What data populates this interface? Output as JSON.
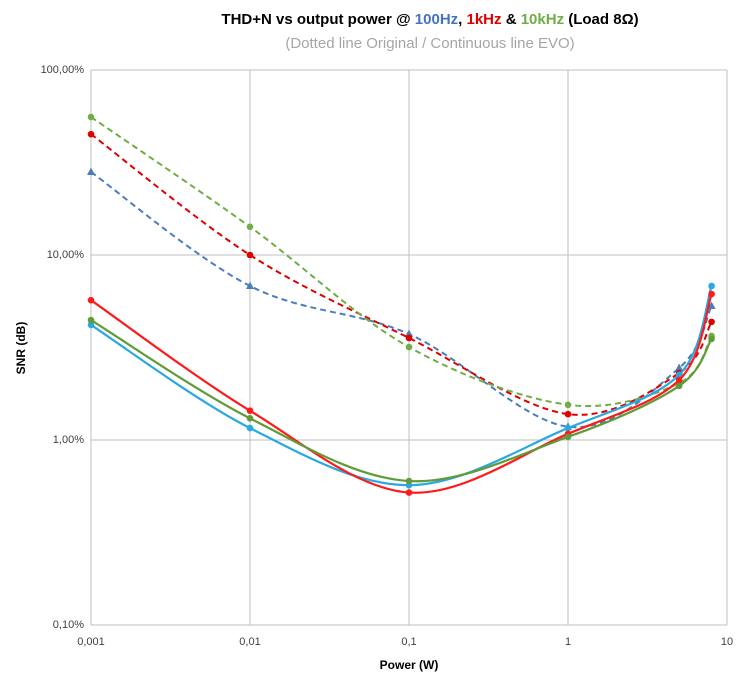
{
  "chart_data": {
    "type": "line",
    "title": [
      {
        "text": "THD+N vs output power @ ",
        "color": "#000000"
      },
      {
        "text": "100Hz",
        "color": "#4472c4"
      },
      {
        "text": ", ",
        "color": "#000000"
      },
      {
        "text": "1kHz",
        "color": "#e00000"
      },
      {
        "text": " & ",
        "color": "#000000"
      },
      {
        "text": "10kHz",
        "color": "#70ad47"
      },
      {
        "text": " (Load 8Ω)",
        "color": "#000000"
      }
    ],
    "subtitle": "(Dotted line Original / Continuous line EVO)",
    "xlabel": "Power (W)",
    "ylabel": "SNR (dB)",
    "xlog": true,
    "ylog": true,
    "grid": true,
    "xlim": [
      0.001,
      10
    ],
    "xticks": [
      {
        "value": 0.001,
        "label": "0,001"
      },
      {
        "value": 0.01,
        "label": "0,01"
      },
      {
        "value": 0.1,
        "label": "0,1"
      },
      1,
      10
    ],
    "ylim": [
      0.1,
      100
    ],
    "yticks": [
      {
        "value": 0.1,
        "label": "0,10%"
      },
      {
        "value": 1,
        "label": "1,00%"
      },
      {
        "value": 10,
        "label": "10,00%"
      },
      {
        "value": 100,
        "label": "100,00%"
      }
    ],
    "x": [
      0.001,
      0.01,
      0.1,
      1,
      5,
      8
    ],
    "series": [
      {
        "color": "#4a7ebb",
        "dashed": true,
        "marker": "triangle",
        "values": [
          28.1,
          6.8,
          3.74,
          1.18,
          2.45,
          5.3
        ]
      },
      {
        "color": "#e00000",
        "dashed": true,
        "marker": "circle",
        "values": [
          45,
          10,
          3.56,
          1.38,
          2.3,
          4.35
        ]
      },
      {
        "color": "#70ad47",
        "dashed": true,
        "marker": "circle",
        "values": [
          55.7,
          14.2,
          3.18,
          1.55,
          2.03,
          3.65
        ]
      },
      {
        "color": "#29a9e1",
        "dashed": false,
        "marker": "circle",
        "values": [
          4.19,
          1.16,
          0.57,
          1.16,
          2.25,
          6.8
        ]
      },
      {
        "color": "#ff1a1a",
        "dashed": false,
        "marker": "circle",
        "values": [
          5.7,
          1.44,
          0.52,
          1.08,
          2.11,
          6.15
        ]
      },
      {
        "color": "#5f9b38",
        "dashed": false,
        "marker": "circle",
        "values": [
          4.45,
          1.31,
          0.6,
          1.04,
          1.96,
          3.52
        ]
      }
    ]
  }
}
